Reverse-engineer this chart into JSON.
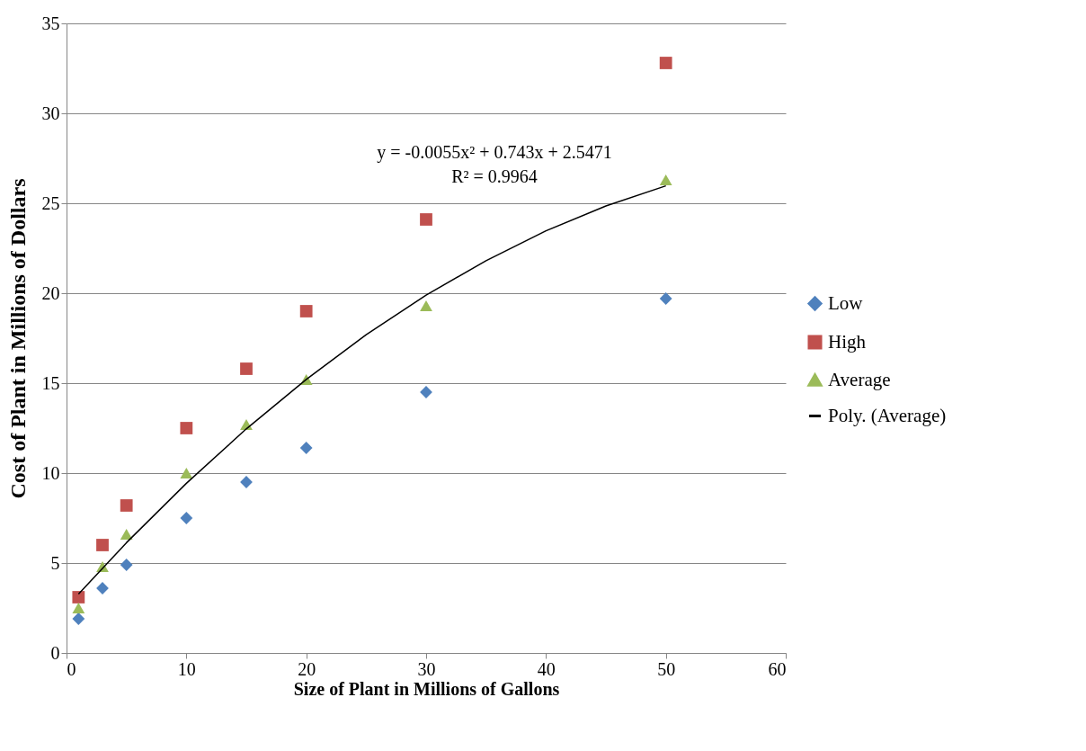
{
  "chart_data": {
    "type": "scatter",
    "xlabel": "Size of Plant in Millions of Gallons",
    "ylabel": "Cost of Plant in Millions of Dollars",
    "x": [
      1,
      3,
      5,
      10,
      15,
      20,
      30,
      50
    ],
    "series": [
      {
        "name": "Low",
        "color": "#4f81bd",
        "marker": "diamond",
        "values": [
          1.9,
          3.6,
          4.9,
          7.5,
          9.5,
          11.4,
          14.5,
          19.7
        ]
      },
      {
        "name": "High",
        "color": "#c0504d",
        "marker": "square",
        "values": [
          3.1,
          6.0,
          8.2,
          12.5,
          15.8,
          19.0,
          24.1,
          32.8
        ]
      },
      {
        "name": "Average",
        "color": "#9bbb59",
        "marker": "triangle",
        "values": [
          2.5,
          4.8,
          6.6,
          10.0,
          12.7,
          15.2,
          19.3,
          26.3
        ]
      },
      {
        "name": "Poly. (Average)",
        "type": "line",
        "color": "#000000",
        "marker": "none",
        "x": [
          1,
          5,
          10,
          15,
          20,
          25,
          30,
          35,
          40,
          45,
          50
        ],
        "values": [
          3.28,
          6.13,
          9.43,
          12.46,
          15.21,
          17.69,
          19.89,
          21.81,
          23.47,
          24.85,
          25.97
        ]
      }
    ],
    "annotations": [
      "y = -0.0055x² + 0.743x + 2.5471",
      "R² = 0.9964"
    ],
    "xlim": [
      0,
      60
    ],
    "xticks": [
      0,
      10,
      20,
      30,
      40,
      50,
      60
    ],
    "ylim": [
      0,
      35
    ],
    "yticks": [
      0,
      5,
      10,
      15,
      20,
      25,
      30,
      35
    ],
    "grid": "y",
    "legend": "right"
  }
}
